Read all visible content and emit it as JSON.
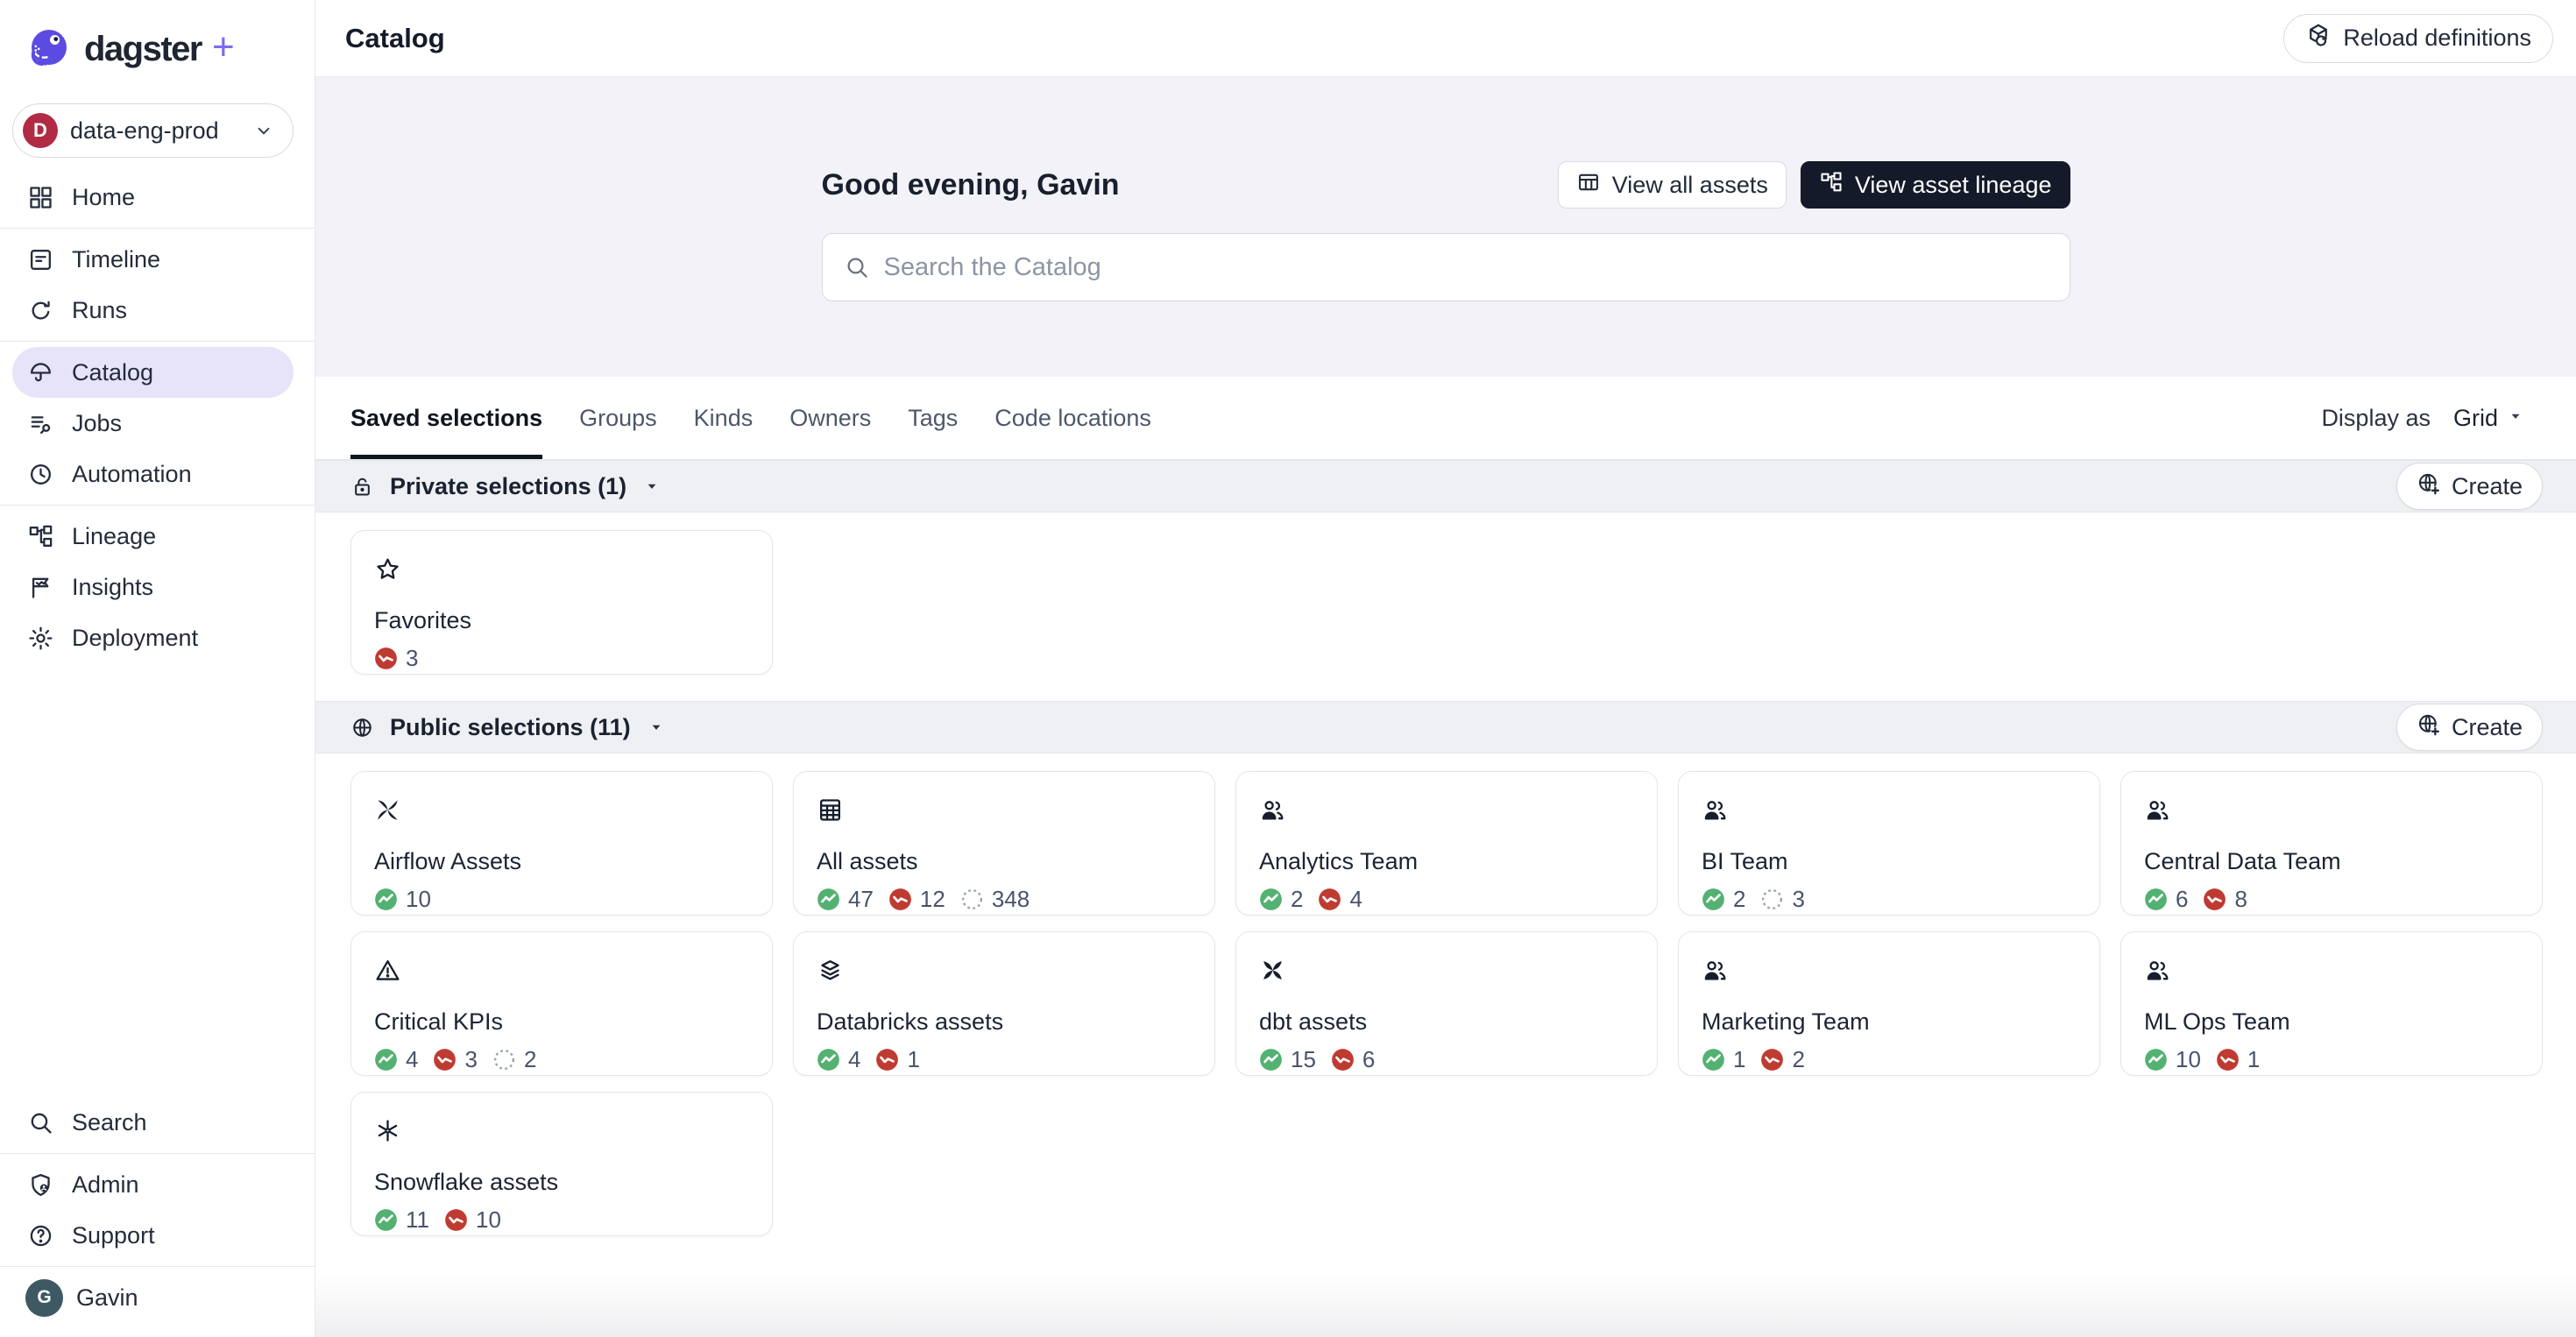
{
  "colors": {
    "brand_purple": "#5B4BE1",
    "brand_plus": "#7B6CF2",
    "success_green": "#53B172",
    "failed_red": "#BF3B31",
    "missing_gray": "#98A1AD",
    "dark_button_bg": "#141A29",
    "deployment_avatar_bg": "#B12B44",
    "user_avatar_bg": "#3E5964",
    "active_nav_bg": "#E7E3F9",
    "hero_bg": "#F2F2F8",
    "band_bg": "#EEF0F3"
  },
  "brand": {
    "name": "dagster",
    "plus": "+"
  },
  "deployment": {
    "avatar": "D",
    "label": "data-eng-prod"
  },
  "sidebar": {
    "nav_groups": [
      [
        {
          "label": "Home",
          "icon": "grid-icon"
        }
      ],
      [
        {
          "label": "Timeline",
          "icon": "timeline-icon"
        },
        {
          "label": "Runs",
          "icon": "runs-icon"
        }
      ],
      [
        {
          "label": "Catalog",
          "icon": "catalog-icon",
          "active": true
        },
        {
          "label": "Jobs",
          "icon": "jobs-icon"
        },
        {
          "label": "Automation",
          "icon": "clock-icon"
        }
      ],
      [
        {
          "label": "Lineage",
          "icon": "lineage-icon"
        },
        {
          "label": "Insights",
          "icon": "insights-icon"
        },
        {
          "label": "Deployment",
          "icon": "gear-icon"
        }
      ]
    ],
    "bottom_groups": [
      [
        {
          "label": "Search",
          "icon": "search-icon"
        }
      ],
      [
        {
          "label": "Admin",
          "icon": "shield-person-icon"
        },
        {
          "label": "Support",
          "icon": "help-icon"
        }
      ]
    ],
    "user": {
      "avatar": "G",
      "name": "Gavin"
    }
  },
  "header": {
    "title": "Catalog",
    "reload_label": "Reload definitions"
  },
  "hero": {
    "greeting": "Good evening, Gavin",
    "view_all_assets": "View all assets",
    "view_asset_lineage": "View asset lineage",
    "search_placeholder": "Search the Catalog"
  },
  "tabs": [
    {
      "label": "Saved selections",
      "active": true
    },
    {
      "label": "Groups"
    },
    {
      "label": "Kinds"
    },
    {
      "label": "Owners"
    },
    {
      "label": "Tags"
    },
    {
      "label": "Code locations"
    }
  ],
  "display_as": {
    "label": "Display as",
    "value": "Grid"
  },
  "sections": [
    {
      "title": "Private selections (1)",
      "icon": "lock-icon",
      "create_label": "Create",
      "cards": [
        {
          "name": "Favorites",
          "icon": "star-icon",
          "counts": [
            {
              "status": "failed",
              "value": "3"
            }
          ]
        }
      ]
    },
    {
      "title": "Public selections (11)",
      "icon": "globe-icon",
      "create_label": "Create",
      "cards": [
        {
          "name": "Airflow Assets",
          "icon": "airflow-icon",
          "counts": [
            {
              "status": "success",
              "value": "10"
            }
          ]
        },
        {
          "name": "All assets",
          "icon": "table-grid-icon",
          "counts": [
            {
              "status": "success",
              "value": "47"
            },
            {
              "status": "failed",
              "value": "12"
            },
            {
              "status": "missing",
              "value": "348"
            }
          ]
        },
        {
          "name": "Analytics Team",
          "icon": "team-icon",
          "counts": [
            {
              "status": "success",
              "value": "2"
            },
            {
              "status": "failed",
              "value": "4"
            }
          ]
        },
        {
          "name": "BI Team",
          "icon": "team-icon",
          "counts": [
            {
              "status": "success",
              "value": "2"
            },
            {
              "status": "missing",
              "value": "3"
            }
          ]
        },
        {
          "name": "Central Data Team",
          "icon": "team-icon",
          "counts": [
            {
              "status": "success",
              "value": "6"
            },
            {
              "status": "failed",
              "value": "8"
            }
          ]
        },
        {
          "name": "Critical KPIs",
          "icon": "warning-icon",
          "counts": [
            {
              "status": "success",
              "value": "4"
            },
            {
              "status": "failed",
              "value": "3"
            },
            {
              "status": "missing",
              "value": "2"
            }
          ]
        },
        {
          "name": "Databricks assets",
          "icon": "layers-icon",
          "counts": [
            {
              "status": "success",
              "value": "4"
            },
            {
              "status": "failed",
              "value": "1"
            }
          ]
        },
        {
          "name": "dbt assets",
          "icon": "dbt-icon",
          "counts": [
            {
              "status": "success",
              "value": "15"
            },
            {
              "status": "failed",
              "value": "6"
            }
          ]
        },
        {
          "name": "Marketing Team",
          "icon": "team-icon",
          "counts": [
            {
              "status": "success",
              "value": "1"
            },
            {
              "status": "failed",
              "value": "2"
            }
          ]
        },
        {
          "name": "ML Ops Team",
          "icon": "team-icon",
          "counts": [
            {
              "status": "success",
              "value": "10"
            },
            {
              "status": "failed",
              "value": "1"
            }
          ]
        },
        {
          "name": "Snowflake assets",
          "icon": "snowflake-icon",
          "counts": [
            {
              "status": "success",
              "value": "11"
            },
            {
              "status": "failed",
              "value": "10"
            }
          ]
        }
      ]
    }
  ]
}
